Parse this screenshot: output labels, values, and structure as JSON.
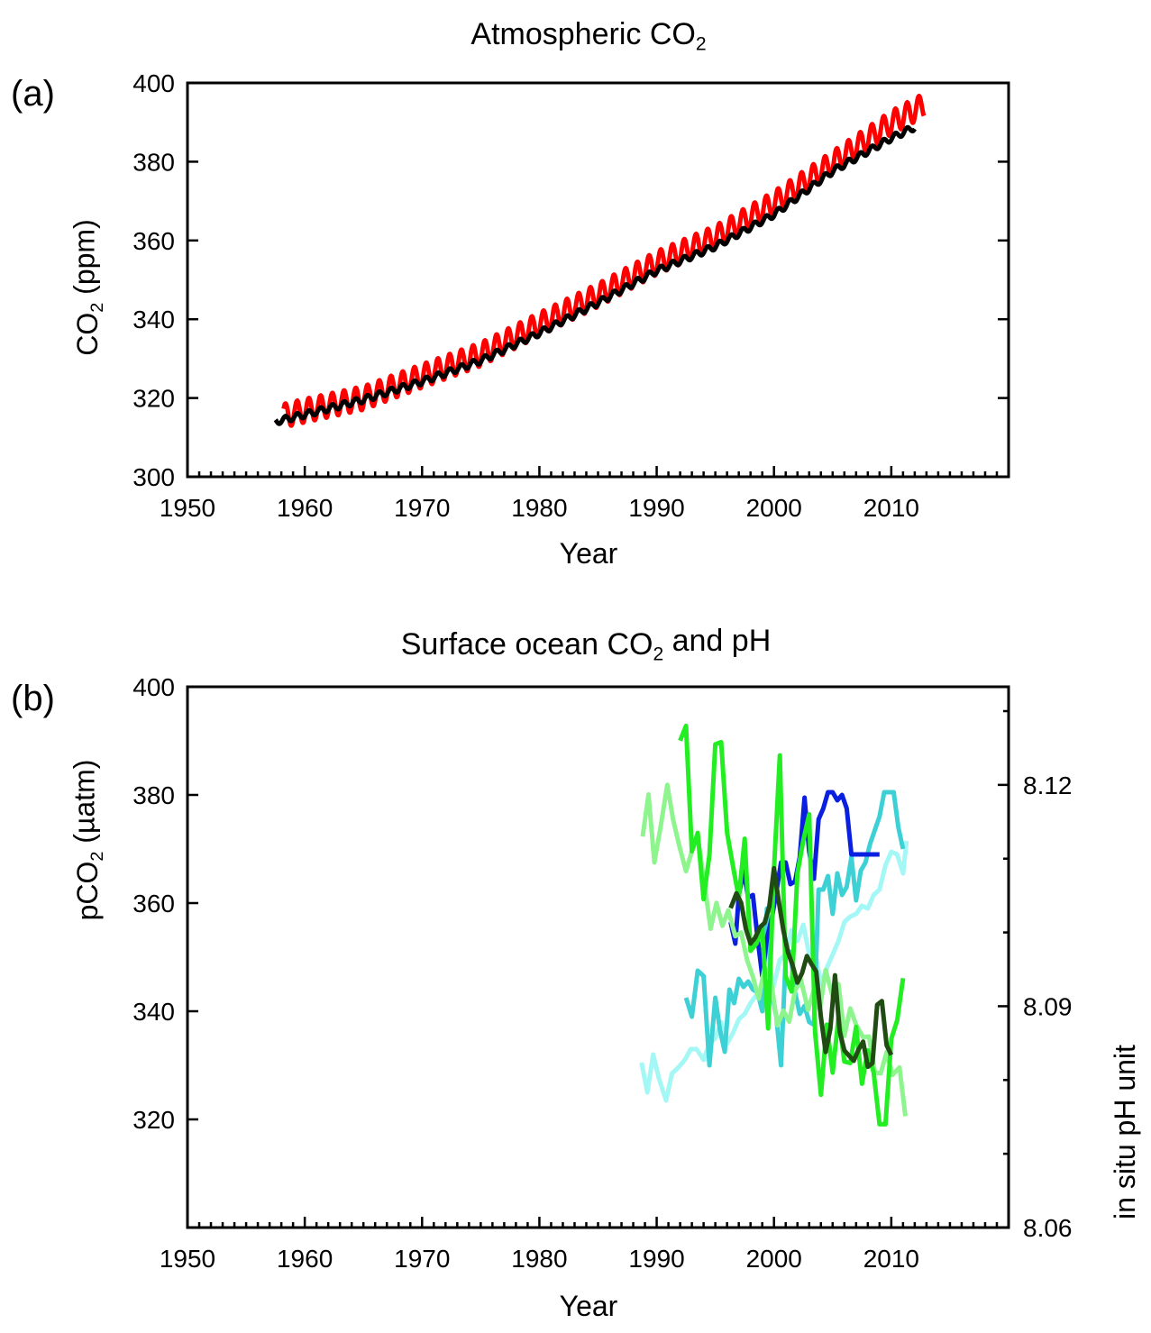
{
  "chart_data": [
    {
      "type": "line",
      "panel_label": "(a)",
      "title": "Atmospheric CO₂",
      "xlabel": "Year",
      "ylabel": "CO₂ (ppm)",
      "xlim": [
        1950,
        2020
      ],
      "ylim": [
        300,
        400
      ],
      "xticks": [
        1950,
        1960,
        1970,
        1980,
        1990,
        2000,
        2010
      ],
      "yticks": [
        300,
        320,
        340,
        360,
        380,
        400
      ],
      "grid": false,
      "series": [
        {
          "color": "#ff0000",
          "seasonal_amplitude_ppm": 3,
          "samples_per_year": 12,
          "trend_x": [
            1958.2,
            1960,
            1965,
            1970,
            1975,
            1980,
            1985,
            1990,
            1995,
            2000,
            2005,
            2010,
            2012.8
          ],
          "trend_y": [
            315.5,
            316.8,
            320.0,
            325.6,
            331.1,
            338.7,
            346.1,
            354.3,
            360.8,
            369.5,
            379.7,
            389.9,
            394.4
          ]
        },
        {
          "color": "#000000",
          "seasonal_amplitude_ppm": 0.8,
          "samples_per_year": 12,
          "trend_x": [
            1957.5,
            1960,
            1965,
            1970,
            1975,
            1980,
            1985,
            1990,
            1995,
            2000,
            2005,
            2010,
            2012
          ],
          "trend_y": [
            314.0,
            315.8,
            319.6,
            324.2,
            329.5,
            336.5,
            344.2,
            352.3,
            358.5,
            366.6,
            377.6,
            386.0,
            388.8
          ]
        }
      ]
    },
    {
      "type": "line",
      "panel_label": "(b)",
      "title": "Surface ocean CO₂ and pH",
      "xlabel": "Year",
      "ylabel": "pCO₂ (µatm)",
      "y2label": "in situ pH unit",
      "xlim": [
        1950,
        2020
      ],
      "ylim": [
        300,
        400
      ],
      "yticks": [
        320,
        340,
        360,
        380,
        400
      ],
      "y2lim": [
        8.06,
        8.1333
      ],
      "y2ticks": [
        8.06,
        8.09,
        8.12
      ],
      "y2ticklabels": [
        "8.06",
        "8.09",
        "8.12"
      ],
      "xticks": [
        1950,
        1960,
        1970,
        1980,
        1990,
        2000,
        2010
      ],
      "grid": false,
      "series": [
        {
          "axis": "left",
          "color": "#0a1fe0",
          "x": [
            1996.3,
            1996.7,
            1997.0,
            1997.4,
            1997.8,
            1998.2,
            1998.6,
            1999.0,
            1999.4,
            1999.8,
            2000.2,
            2000.6,
            2001.0,
            2001.4,
            2001.8,
            2002.2,
            2002.6,
            2003.0,
            2003.4,
            2003.8,
            2004.2,
            2004.6,
            2005.0,
            2005.4,
            2005.8,
            2006.2,
            2006.6,
            2007.0,
            2007.4,
            2007.8,
            2008.2,
            2008.6,
            2009.0
          ],
          "y": [
            356.5,
            352.5,
            361.5,
            366.0,
            361.0,
            361.5,
            353.5,
            346.5,
            353.5,
            357.0,
            362.0,
            367.5,
            367.5,
            363.5,
            364.0,
            368.5,
            379.5,
            369.5,
            364.5,
            375.5,
            377.5,
            380.5,
            380.5,
            379.0,
            380.0,
            377.5,
            369.0,
            369.0,
            369.0,
            369.0,
            369.0,
            369.0,
            369.0
          ]
        },
        {
          "axis": "left",
          "color": "#3dd1d6",
          "x": [
            1992.5,
            1993.0,
            1993.5,
            1994.0,
            1994.5,
            1995.0,
            1995.4,
            1995.8,
            1996.2,
            1996.6,
            1997.0,
            1997.4,
            1997.8,
            1998.2,
            1998.6,
            1999.0,
            1999.4,
            1999.8,
            2000.2,
            2000.6,
            2001.0,
            2001.4,
            2001.8,
            2002.2,
            2002.6,
            2003.0,
            2003.4,
            2003.8,
            2004.2,
            2004.6,
            2005.0,
            2005.4,
            2005.8,
            2006.2,
            2006.6,
            2007.0,
            2007.4,
            2007.8,
            2008.2,
            2008.6,
            2009.0,
            2009.4,
            2009.8,
            2010.2,
            2010.6,
            2011.0
          ],
          "y": [
            342.5,
            339.0,
            347.5,
            346.5,
            330.0,
            342.5,
            336.5,
            332.5,
            344.0,
            341.5,
            346.0,
            344.5,
            345.5,
            344.0,
            343.5,
            340.0,
            359.0,
            343.5,
            339.0,
            330.0,
            350.0,
            351.0,
            343.5,
            339.5,
            341.0,
            338.0,
            337.5,
            362.5,
            362.5,
            365.0,
            358.0,
            365.5,
            361.5,
            363.0,
            368.5,
            360.5,
            366.0,
            367.5,
            371.0,
            373.5,
            376.0,
            380.5,
            380.5,
            380.5,
            374.0,
            370.0
          ]
        },
        {
          "axis": "left",
          "color": "#a3f7f5",
          "x": [
            1988.7,
            1989.2,
            1989.7,
            1990.2,
            1990.8,
            1991.3,
            1991.8,
            1992.4,
            1992.9,
            1993.4,
            1994.0,
            1994.5,
            1995.0,
            1995.5,
            1996.0,
            1996.5,
            1997.0,
            1997.5,
            1998.0,
            1998.5,
            1999.0,
            1999.5,
            2000.0,
            2000.5,
            2001.0,
            2001.5,
            2002.0,
            2002.5,
            2003.0,
            2003.5,
            2004.0,
            2004.5,
            2005.0,
            2005.5,
            2006.0,
            2006.5,
            2007.0,
            2007.5,
            2008.0,
            2008.5,
            2009.0,
            2009.5,
            2010.0,
            2010.5,
            2011.0,
            2011.3
          ],
          "y": [
            330.5,
            325.0,
            332.0,
            327.5,
            323.5,
            328.5,
            329.5,
            331.0,
            333.0,
            333.0,
            331.0,
            334.0,
            335.0,
            338.0,
            334.0,
            336.0,
            338.5,
            339.5,
            341.5,
            343.0,
            342.5,
            341.0,
            345.0,
            349.5,
            350.5,
            355.0,
            353.0,
            356.0,
            350.5,
            351.0,
            345.0,
            348.0,
            350.5,
            353.0,
            356.5,
            357.5,
            358.0,
            359.5,
            359.0,
            361.5,
            362.5,
            367.0,
            369.5,
            369.0,
            365.5,
            371.5
          ]
        },
        {
          "axis": "right",
          "color": "#204c14",
          "x": [
            1996.3,
            1996.8,
            1997.2,
            1997.6,
            1998.0,
            1998.4,
            1998.8,
            1999.2,
            1999.6,
            2000.0,
            2000.4,
            2000.8,
            2001.2,
            2001.6,
            2002.0,
            2002.4,
            2002.8,
            2003.2,
            2003.6,
            2004.0,
            2004.4,
            2004.8,
            2005.2,
            2005.6,
            2006.0,
            2006.4,
            2006.8,
            2007.2,
            2007.6,
            2008.0,
            2008.4,
            2008.8,
            2009.2,
            2009.6,
            2010.0
          ],
          "y": [
            8.1033,
            8.1053,
            8.104,
            8.1005,
            8.0985,
            8.0993,
            8.1007,
            8.1013,
            8.1035,
            8.1087,
            8.1043,
            8.1003,
            8.0973,
            8.0955,
            8.0932,
            8.0945,
            8.0968,
            8.0957,
            8.0947,
            8.0885,
            8.0838,
            8.0869,
            8.0942,
            8.0866,
            8.084,
            8.0833,
            8.0826,
            8.0841,
            8.0852,
            8.0818,
            8.0823,
            8.0902,
            8.0907,
            8.0847,
            8.0834
          ]
        },
        {
          "axis": "right",
          "color": "#22ee22",
          "x": [
            1992.0,
            1992.5,
            1993.0,
            1993.5,
            1994.0,
            1994.5,
            1995.0,
            1995.5,
            1996.0,
            1996.5,
            1997.0,
            1997.5,
            1998.0,
            1998.5,
            1999.0,
            1999.5,
            2000.0,
            2000.5,
            2001.0,
            2001.5,
            2002.0,
            2002.5,
            2003.0,
            2003.5,
            2004.0,
            2004.5,
            2005.0,
            2005.5,
            2006.0,
            2006.5,
            2007.0,
            2007.5,
            2008.0,
            2008.5,
            2009.0,
            2009.5,
            2010.0,
            2010.5,
            2011.0
          ],
          "y": [
            8.126,
            8.128,
            8.111,
            8.1135,
            8.1045,
            8.1105,
            8.1255,
            8.1258,
            8.1135,
            8.109,
            8.1047,
            8.1127,
            8.0975,
            8.0985,
            8.1005,
            8.087,
            8.1085,
            8.124,
            8.094,
            8.092,
            8.108,
            8.1125,
            8.116,
            8.0865,
            8.078,
            8.0875,
            8.081,
            8.0885,
            8.0825,
            8.0823,
            8.0872,
            8.0795,
            8.084,
            8.081,
            8.074,
            8.074,
            8.0856,
            8.0881,
            8.0938
          ]
        },
        {
          "axis": "right",
          "color": "#8ef58e",
          "x": [
            1988.8,
            1989.3,
            1989.8,
            1990.3,
            1990.9,
            1991.4,
            1991.9,
            1992.5,
            1993.0,
            1993.5,
            1994.1,
            1994.6,
            1995.1,
            1995.6,
            1996.1,
            1996.7,
            1997.2,
            1997.7,
            1998.2,
            1998.7,
            1999.2,
            1999.7,
            2000.3,
            2000.8,
            2001.3,
            2001.8,
            2002.3,
            2002.9,
            2003.4,
            2003.9,
            2004.4,
            2005.0,
            2005.5,
            2006.0,
            2006.5,
            2007.0,
            2007.6,
            2008.1,
            2008.6,
            2009.1,
            2009.6,
            2010.1,
            2010.7,
            2011.2
          ],
          "y": [
            8.113,
            8.1187,
            8.1095,
            8.114,
            8.12,
            8.1153,
            8.1119,
            8.1083,
            8.111,
            8.113,
            8.1063,
            8.1005,
            8.104,
            8.1009,
            8.103,
            8.0995,
            8.1,
            8.0963,
            8.094,
            8.091,
            8.0953,
            8.094,
            8.0874,
            8.0894,
            8.0879,
            8.0921,
            8.0936,
            8.0895,
            8.0922,
            8.0895,
            8.0949,
            8.0913,
            8.093,
            8.086,
            8.0897,
            8.0875,
            8.0858,
            8.0859,
            8.081,
            8.0809,
            8.0838,
            8.0807,
            8.0817,
            8.0751
          ]
        }
      ]
    }
  ]
}
